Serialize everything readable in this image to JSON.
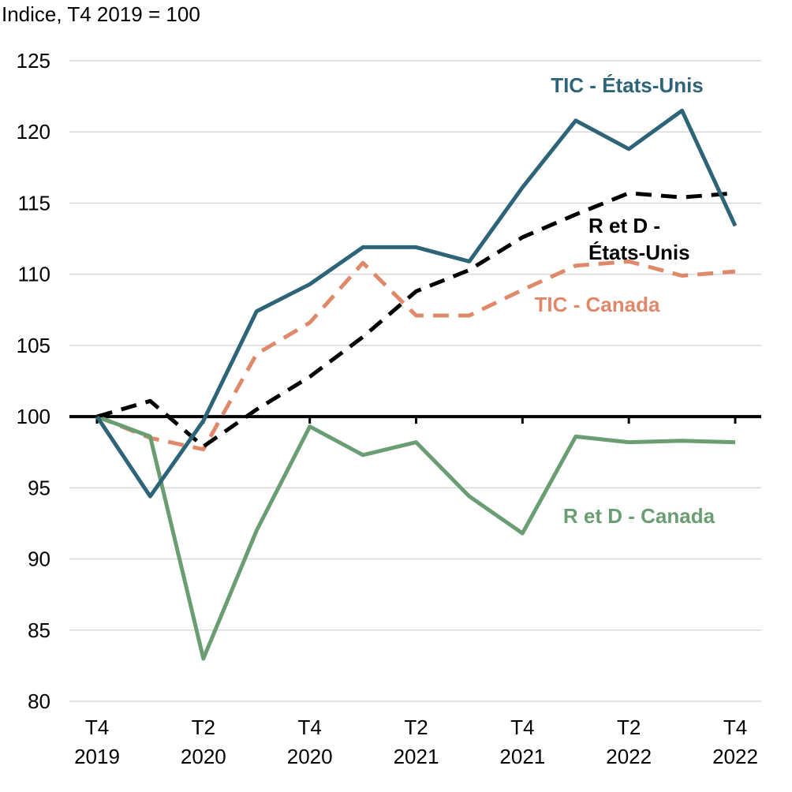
{
  "chart_data": {
    "type": "line",
    "ylabel": "Indice, T4 2019 = 100",
    "ylim": [
      80,
      125
    ],
    "yticks": [
      80,
      85,
      90,
      95,
      100,
      105,
      110,
      115,
      120,
      125
    ],
    "grid": true,
    "reference_line": 100,
    "categories": [
      "T4 2019",
      "T1 2020",
      "T2 2020",
      "T3 2020",
      "T4 2020",
      "T1 2021",
      "T2 2021",
      "T3 2021",
      "T4 2021",
      "T1 2022",
      "T2 2022",
      "T3 2022",
      "T4 2022"
    ],
    "xtick_labels": [
      {
        "index": 0,
        "top": "T4",
        "bottom": "2019"
      },
      {
        "index": 2,
        "top": "T2",
        "bottom": "2020"
      },
      {
        "index": 4,
        "top": "T4",
        "bottom": "2020"
      },
      {
        "index": 6,
        "top": "T2",
        "bottom": "2021"
      },
      {
        "index": 8,
        "top": "T4",
        "bottom": "2021"
      },
      {
        "index": 10,
        "top": "T2",
        "bottom": "2022"
      },
      {
        "index": 12,
        "top": "T4",
        "bottom": "2022"
      }
    ],
    "series": [
      {
        "key": "tic_us",
        "name": "TIC - États-Unis",
        "label_lines": [
          "TIC - États-Unis"
        ],
        "color": "#2e6478",
        "dashed": false,
        "values": [
          100,
          94.4,
          99.7,
          107.4,
          109.3,
          111.9,
          111.9,
          110.9,
          116.1,
          120.8,
          118.8,
          121.5,
          113.4
        ]
      },
      {
        "key": "rd_us",
        "name": "R et D - États-Unis",
        "label_lines": [
          "R et D -",
          "États-Unis"
        ],
        "color": "#000000",
        "dashed": true,
        "values": [
          100,
          101.1,
          97.9,
          100.5,
          102.8,
          105.6,
          108.8,
          110.3,
          112.6,
          114.2,
          115.7,
          115.4,
          115.7
        ]
      },
      {
        "key": "tic_ca",
        "name": "TIC - Canada",
        "label_lines": [
          "TIC - Canada"
        ],
        "color": "#e0896a",
        "dashed": true,
        "values": [
          100,
          98.5,
          97.7,
          104.4,
          106.6,
          110.8,
          107.1,
          107.1,
          108.9,
          110.6,
          110.9,
          109.9,
          110.2
        ]
      },
      {
        "key": "rd_ca",
        "name": "R et D - Canada",
        "label_lines": [
          "R et D - Canada"
        ],
        "color": "#6a9e72",
        "dashed": false,
        "values": [
          100,
          98.6,
          83.0,
          92.0,
          99.3,
          97.3,
          98.2,
          94.4,
          91.8,
          98.6,
          98.2,
          98.3,
          98.2
        ]
      }
    ]
  }
}
